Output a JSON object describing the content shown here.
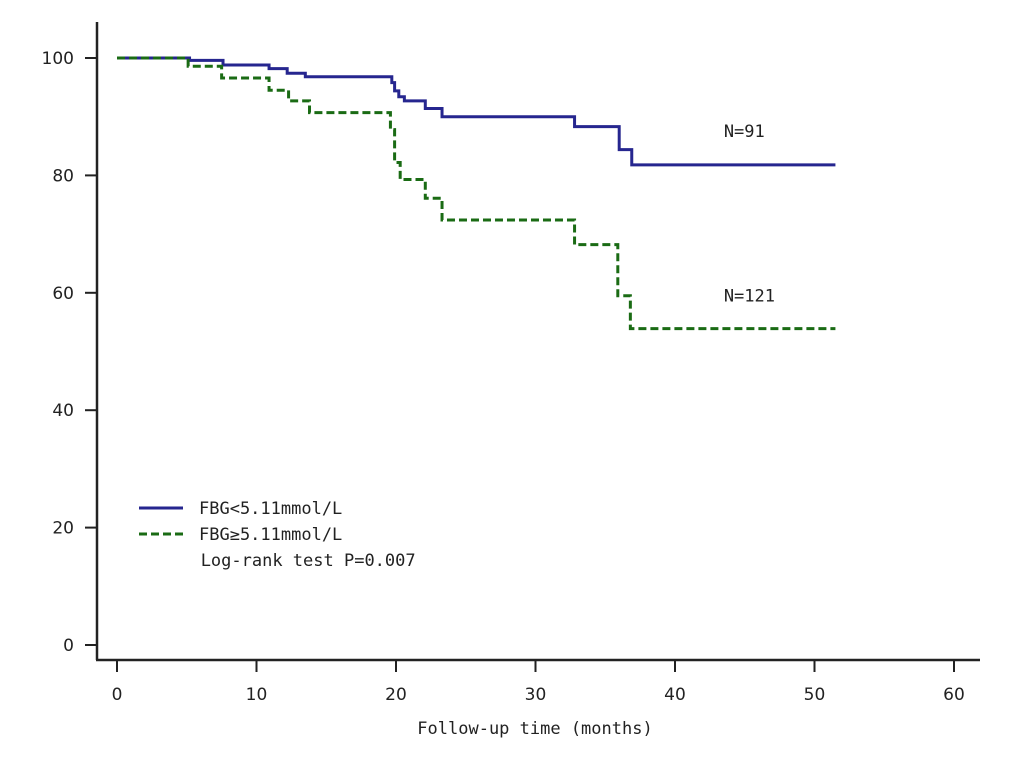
{
  "chart_data": {
    "type": "line",
    "subtype": "kaplan-meier step curve",
    "title": "",
    "xlabel": "Follow-up time (months)",
    "ylabel": "",
    "xlim": [
      0,
      60
    ],
    "ylim": [
      0,
      100
    ],
    "xticks": [
      0,
      10,
      20,
      30,
      40,
      50,
      60
    ],
    "yticks": [
      0,
      20,
      40,
      60,
      80,
      100
    ],
    "grid": false,
    "legend_position": "bottom-left",
    "series": [
      {
        "name": "FBG<5.11mmol/L",
        "color": "#26268f",
        "style": "solid",
        "n_label": "N=91",
        "x": [
          0,
          5.2,
          7.6,
          10.9,
          12.2,
          13.5,
          19.7,
          19.9,
          20.2,
          20.6,
          22.1,
          23.3,
          32.8,
          36.0,
          36.9,
          51.5
        ],
        "y": [
          100,
          99.6,
          98.8,
          98.2,
          97.4,
          96.8,
          95.8,
          94.4,
          93.4,
          92.7,
          91.4,
          90.0,
          88.3,
          84.4,
          81.8,
          81.8
        ]
      },
      {
        "name": "FBG≥5.11mmol/L",
        "color": "#1a6b14",
        "style": "dashed",
        "n_label": "N=121",
        "x": [
          0,
          5.1,
          7.5,
          10.9,
          12.3,
          13.8,
          19.6,
          19.9,
          20.3,
          22.1,
          23.3,
          32.8,
          35.9,
          36.8,
          51.5
        ],
        "y": [
          100,
          98.6,
          96.6,
          94.5,
          92.7,
          90.7,
          87.8,
          82.2,
          79.3,
          76.1,
          72.4,
          68.2,
          59.5,
          53.9,
          53.9
        ]
      }
    ],
    "annotations": [
      {
        "text": "N=91",
        "x": 43.5,
        "y": 86.5
      },
      {
        "text": "N=121",
        "x": 43.5,
        "y": 58.5
      },
      {
        "text": "Log-rank test P=0.007",
        "x": 6.0,
        "y": 13.5
      }
    ],
    "stat_test": "Log-rank test P=0.007"
  }
}
